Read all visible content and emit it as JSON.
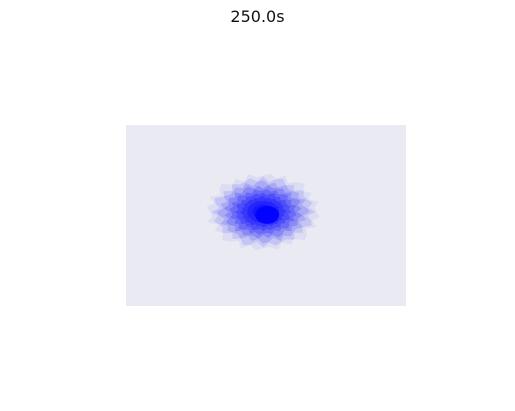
{
  "title": "250.0s",
  "chart_data": {
    "type": "heatmap",
    "title": "250.0s",
    "xlabel": "",
    "ylabel": "",
    "grid": false,
    "axis_background": "#eaeaf2",
    "fill_color": "#0000ff",
    "density_levels": 10,
    "density": {
      "peak_x": 0.49,
      "peak_y": 0.48,
      "spread_x": 0.19,
      "spread_y": 0.2
    }
  }
}
